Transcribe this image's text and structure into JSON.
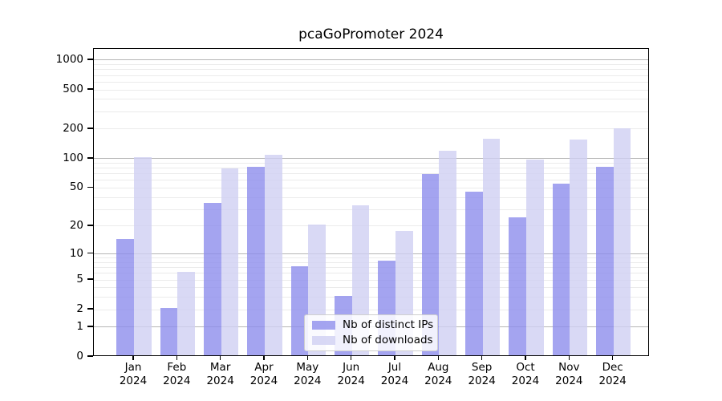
{
  "figure": {
    "title": "pcaGoPromoter 2024"
  },
  "chart_data": {
    "type": "bar",
    "title": "pcaGoPromoter 2024",
    "subtitle": "",
    "xlabel": "",
    "ylabel": "",
    "yscale": "log1p",
    "categories": [
      "Jan 2024",
      "Feb 2024",
      "Mar 2024",
      "Apr 2024",
      "May 2024",
      "Jun 2024",
      "Jul 2024",
      "Aug 2024",
      "Sep 2024",
      "Oct 2024",
      "Nov 2024",
      "Dec 2024"
    ],
    "series": [
      {
        "name": "Nb of distinct IPs",
        "color": "#8d8dec",
        "values": [
          14,
          2,
          34,
          80,
          7,
          3,
          8,
          67,
          44,
          24,
          53,
          80
        ]
      },
      {
        "name": "Nb of downloads",
        "color": "#d0d0f3",
        "values": [
          100,
          6,
          76,
          105,
          20,
          32,
          17,
          115,
          155,
          94,
          150,
          195
        ]
      }
    ],
    "yticks": [
      1000,
      500,
      200,
      100,
      50,
      20,
      10,
      5,
      2,
      1,
      0
    ],
    "ylim": [
      0,
      1300
    ],
    "grid": {
      "major_values": [
        1,
        10,
        100,
        1000
      ],
      "major_color": "#b6b6b6",
      "minor_color": "#ebebeb",
      "legend_position": "inside-bottom-center"
    }
  }
}
